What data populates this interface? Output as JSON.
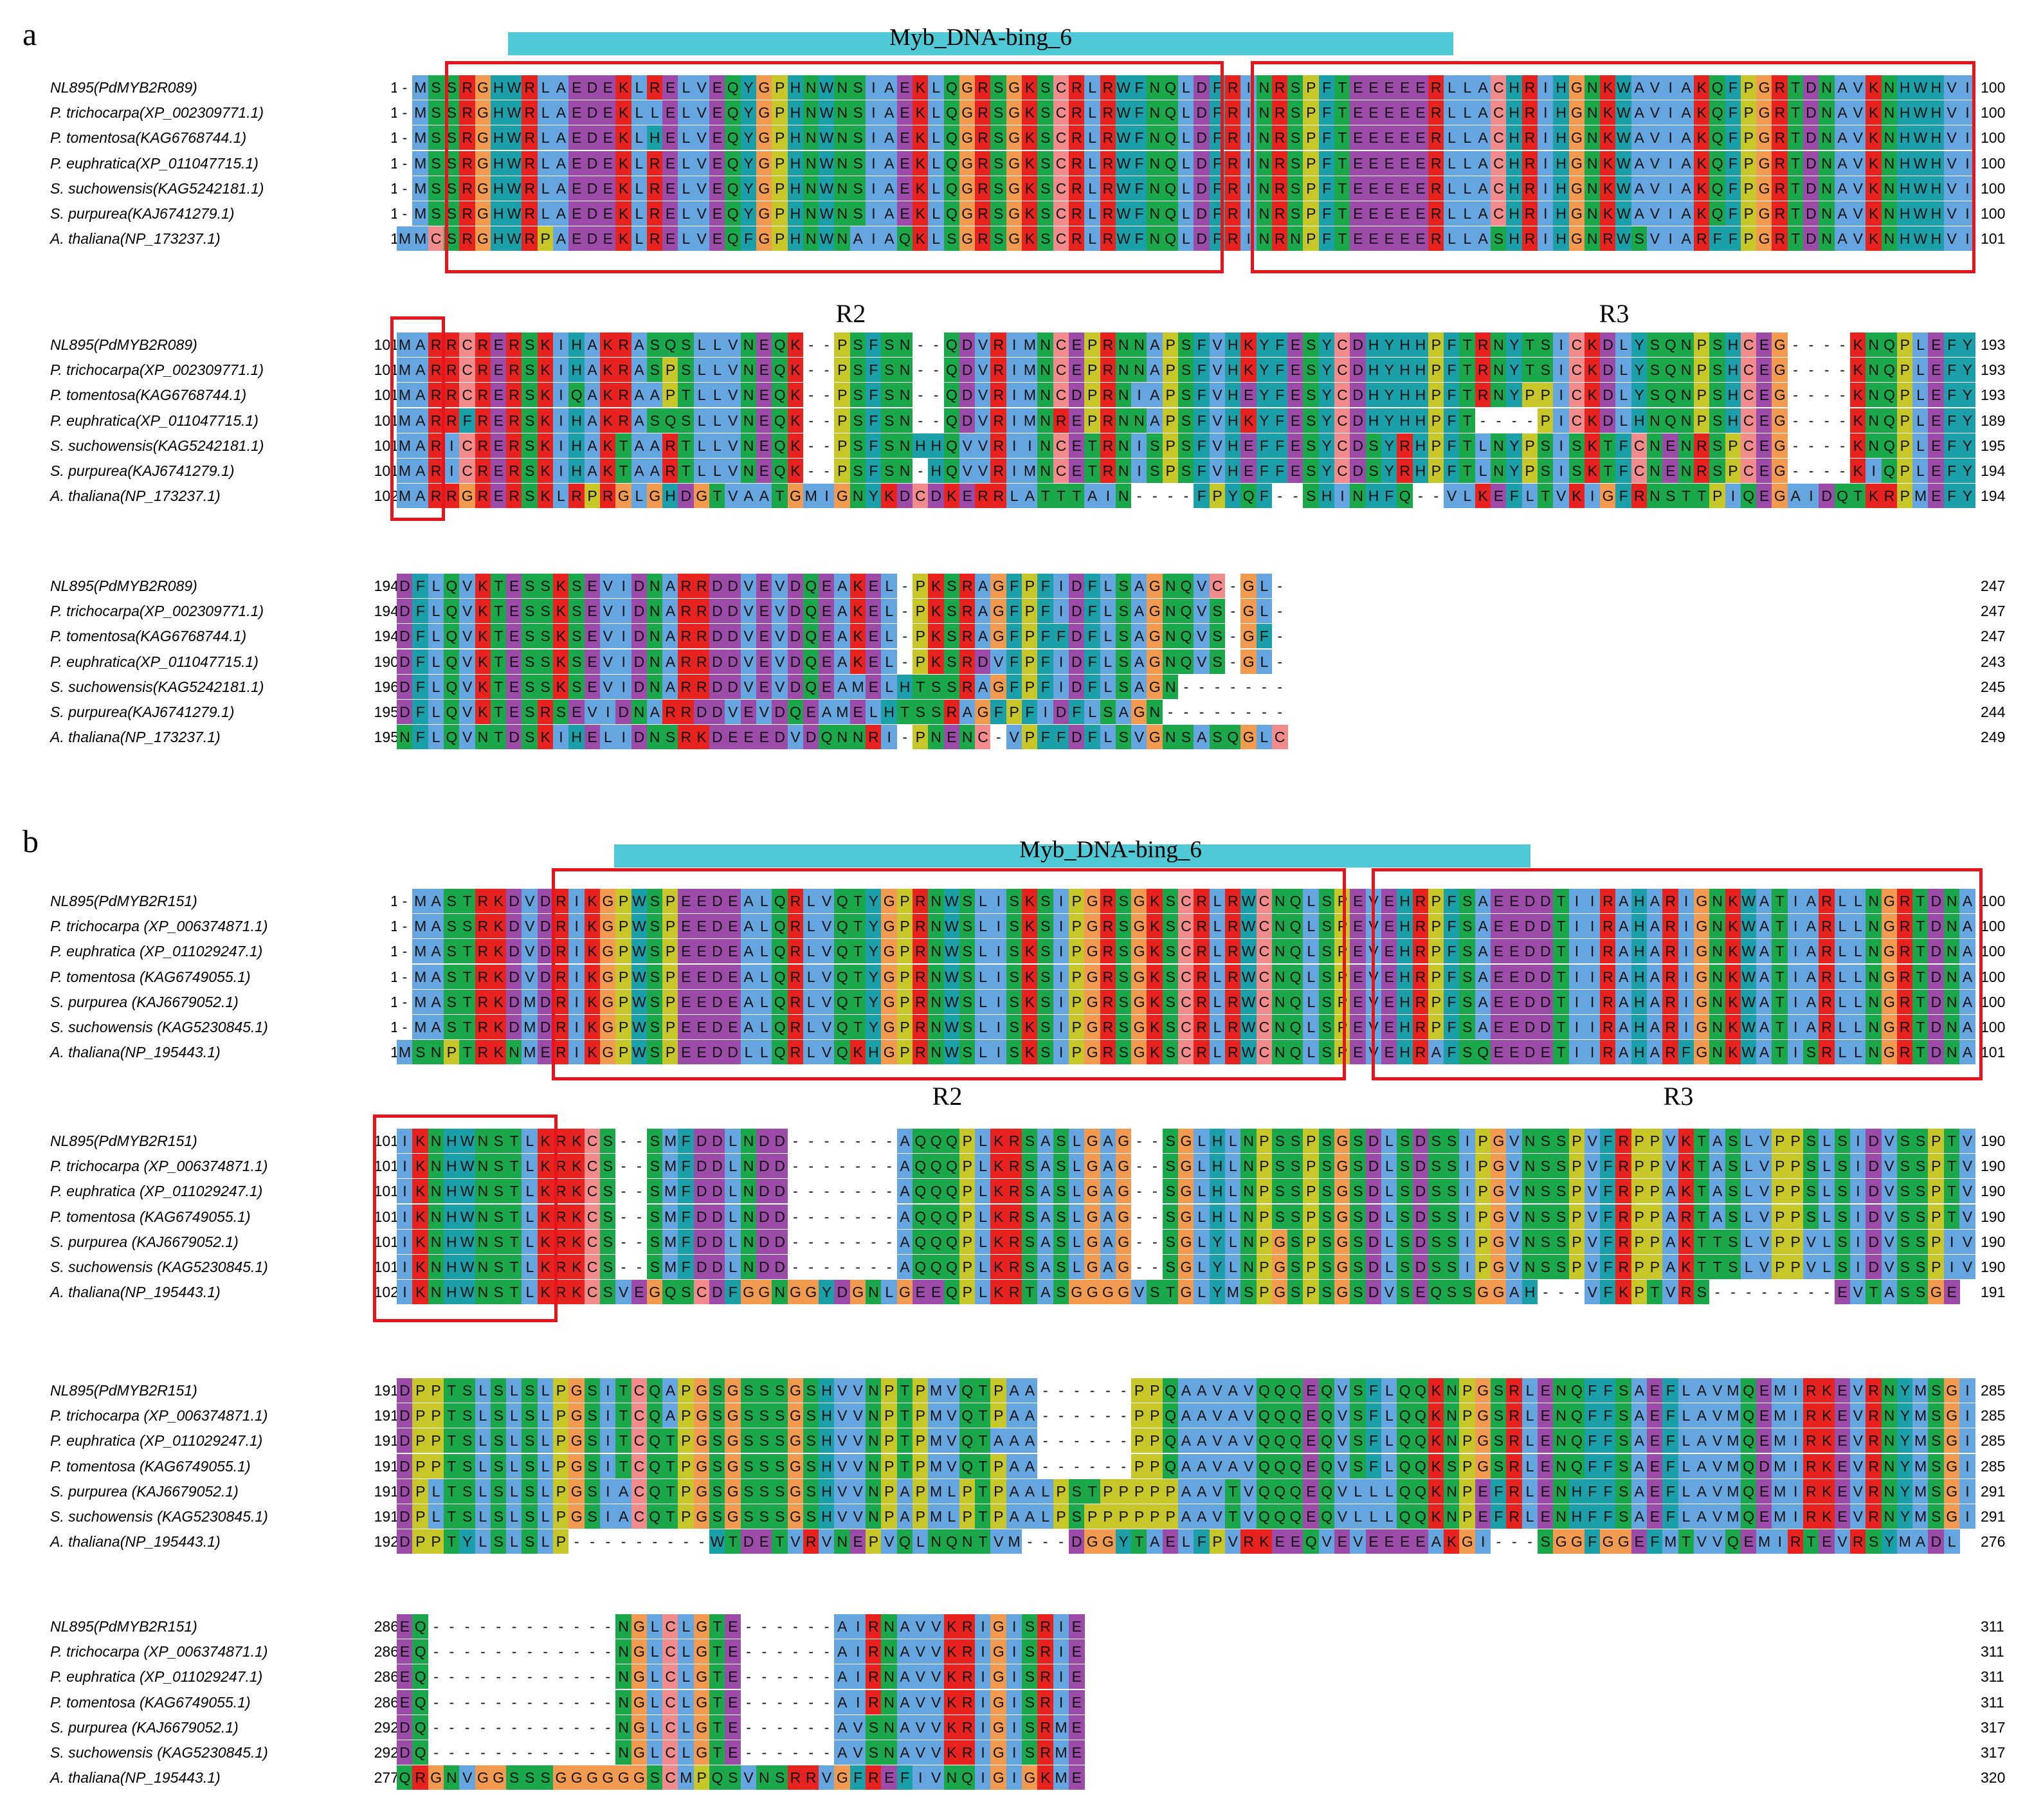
{
  "colors": {
    "domain_bar": "#4fc9d6",
    "region_box": "#e8141b",
    "residue_palette": {
      "hydrophobic": "#66a6e0",
      "positive": "#e8221f",
      "negative": "#9c4ca8",
      "polar": "#1aa84a",
      "cysteine": "#f28b8b",
      "glycine": "#f29b50",
      "proline": "#c7c729",
      "aromatic": "#1b9fa8",
      "gap": "#ffffff"
    }
  },
  "panels": [
    {
      "letter": "a",
      "domain": {
        "label": "Myb_DNA-bing_6"
      },
      "region_labels": [
        "R2",
        "R3"
      ],
      "blocks": [
        {
          "rows": [
            {
              "name": "NL895(PdMYB2R089)",
              "start": "1",
              "end": "100",
              "seq": "-MSSRGHWRLAEDEKLRELVEQYGPHNWNSIAEKLQGRSGKSCRLRWFNQLDFRINRSPFTEEEEERLLACHRIHGNKWAVIAKQFPGRTDNAVKNHWHVI"
            },
            {
              "name": "P. trichocarpa(XP_002309771.1)",
              "start": "1",
              "end": "100",
              "seq": "-MSSRGHWRLAEDEKLLELVEQYGPHNWNSIAEKLQGRSGKSCRLRWFNQLDFRINRSPFTEEEEERLLACHRIHGNKWAVIAKQFPGRTDNAVKNHWHVI"
            },
            {
              "name": "P. tomentosa(KAG6768744.1)",
              "start": "1",
              "end": "100",
              "seq": "-MSSRGHWRLAEDEKLHELVEQYGPHNWNSIAEKLQGRSGKSCRLRWFNQLDFRINRSPFTEEEEERLLACHRIHGNKWAVIAKQFPGRTDNAVKNHWHVI"
            },
            {
              "name": "P. euphratica(XP_011047715.1)",
              "start": "1",
              "end": "100",
              "seq": "-MSSRGHWRLAEDEKLRELVEQYGPHNWNSIAEKLQGRSGKSCRLRWFNQLDFRINRSPFTEEEEERLLACHRIHGNKWAVIAKQFPGRTDNAVKNHWHVI"
            },
            {
              "name": "S. suchowensis(KAG5242181.1)",
              "start": "1",
              "end": "100",
              "seq": "-MSSRGHWRLAEDEKLRELVEQYGPHNWNSIAEKLQGRSGKSCRLRWFNQLDFRINRSPFTEEEEERLLACHRIHGNKWAVIAKQFPGRTDNAVKNHWHVI"
            },
            {
              "name": "S. purpurea(KAJ6741279.1)",
              "start": "1",
              "end": "100",
              "seq": "-MSSRGHWRLAEDEKLRELVEQYGPHNWNSIAEKLQGRSGKSCRLRWFNQLDFRINRSPFTEEEEERLLACHRIHGNKWAVIAKQFPGRTDNAVKNHWHVI"
            },
            {
              "name": "A. thaliana(NP_173237.1)",
              "start": "1",
              "end": "101",
              "seq": "MMCSRGHWRPAEDEKLRELVEQFGPHNWNAIAQKLSGRSGKSCRLRWFNQLDFRINRNPFTEEEEERLLASHRIHGNRWSVIARFFPGRTDNAVKNHWHVI"
            }
          ]
        },
        {
          "rows": [
            {
              "name": "NL895(PdMYB2R089)",
              "start": "101",
              "end": "193",
              "seq": "MARRCRERSKIHAKRASQSLLVNEQK--PSFSN--QDVRIMNCEPRNNAPSFVHKYFESYCDHYHHPFTRNYTSICKDLYSQNPSHCEG----KNQPLEFY"
            },
            {
              "name": "P. trichocarpa(XP_002309771.1)",
              "start": "101",
              "end": "193",
              "seq": "MARRCRERSKIHAKRASPSLLVNEQK--PSFSN--QDVRIMNCEPRNNAPSFVHKYFESYCDHYHHPFTRNYTSICKDLYSQNPSHCEG----KNQPLEFY"
            },
            {
              "name": "P. tomentosa(KAG6768744.1)",
              "start": "101",
              "end": "193",
              "seq": "MARRCRERSKIQAKRAAPTLLVNEQK--PSFSN--QDVRIMNCDPRNIAPSFVHEYFESYCDHYHHPFTRNYPPICKDLYSQNPSHCEG----KNQPLEFY"
            },
            {
              "name": "P. euphratica(XP_011047715.1)",
              "start": "101",
              "end": "189",
              "seq": "MARRFRERSKIHAKRASQSLLVNEQK--PSFSN--QDVRIMNREPRNNAPSFVHKYFESYCDHYHHPFT----PICKDLHNQNPSHCEG----KNQPLEFY"
            },
            {
              "name": "S. suchowensis(KAG5242181.1)",
              "start": "101",
              "end": "195",
              "seq": "MARICRERSKIHAKTAARTLLVNEQK--PSFSNHHQVVRIINCETRNISPSFVHEFFESYCDSYRHPFTLNYPSISKTFCNENRSPCEG----KNQPLEFY"
            },
            {
              "name": "S. purpurea(KAJ6741279.1)",
              "start": "101",
              "end": "194",
              "seq": "MARICRERSKIHAKTAARTLLVNEQK--PSFSN-HQVVRIMNCETRNISPSFVHEFFESYCDSYRHPFTLNYPSISKTFCNENRSPCEG----KIQPLEFY"
            },
            {
              "name": "A. thaliana(NP_173237.1)",
              "start": "102",
              "end": "194",
              "seq": "MARRGRERSKLRPRGLGHDGTVAATGMIGNYKDCDKERRLATTTAIN----FPYQF--SHINHFQ--VLKEFLTVKIGFRNSTTPIQEGAIDQTKRPMEFY"
            }
          ]
        },
        {
          "rows": [
            {
              "name": "NL895(PdMYB2R089)",
              "start": "194",
              "end": "247",
              "seq": "DFLQVKTESSKSEVIDNARRDDVEVDQEAKEL-PKSRAGFPFIDFLSAGNQVC-GL-"
            },
            {
              "name": "P. trichocarpa(XP_002309771.1)",
              "start": "194",
              "end": "247",
              "seq": "DFLQVKTESSKSEVIDNARRDDVEVDQEAKEL-PKSRAGFPFIDFLSAGNQVS-GL-"
            },
            {
              "name": "P. tomentosa(KAG6768744.1)",
              "start": "194",
              "end": "247",
              "seq": "DFLQVKTESSKSEVIDNARRDDVEVDQEAKEL-PKSRAGFPFFDFLSAGNQVS-GF-"
            },
            {
              "name": "P. euphratica(XP_011047715.1)",
              "start": "190",
              "end": "243",
              "seq": "DFLQVKTESSKSEVIDNARRDDVEVDQEAKEL-PKSRDVFPFIDFLSAGNQVS-GL-"
            },
            {
              "name": "S. suchowensis(KAG5242181.1)",
              "start": "196",
              "end": "245",
              "seq": "DFLQVKTESSKSEVIDNARRDDVEVDQEAMELHTSSRAGFPFIDFLSAGN-------"
            },
            {
              "name": "S. purpurea(KAJ6741279.1)",
              "start": "195",
              "end": "244",
              "seq": "DFLQVKTESRSEVIDNARRDDVEVDQEAMELHTSSRAGFPFIDFLSAGN--------"
            },
            {
              "name": "A. thaliana(NP_173237.1)",
              "start": "195",
              "end": "249",
              "seq": "NFLQVNTDSKIHELIDNSRKDEEEDVDQNNRI-PNENC-VPFFDFLSVGNSASQGLC"
            }
          ]
        }
      ]
    },
    {
      "letter": "b",
      "domain": {
        "label": "Myb_DNA-bing_6"
      },
      "region_labels": [
        "R2",
        "R3"
      ],
      "blocks": [
        {
          "rows": [
            {
              "name": "NL895(PdMYB2R151)",
              "start": "1",
              "end": "100",
              "seq": "-MASTRKDVDRIKGPWSPEEDEALQRLVQTYGPRNWSLISKSIPGRSGKSCRLRWCNQLSPEVEHRPFSAEEDDTIIRAHARIGNKWATIARLLNGRTDNA"
            },
            {
              "name": "P. trichocarpa (XP_006374871.1)",
              "start": "1",
              "end": "100",
              "seq": "-MASSRKDVDRIKGPWSPEEDEALQRLVQTYGPRNWSLISKSIPGRSGKSCRLRWCNQLSPEVEHRPFSAEEDDTIIRAHARIGNKWATIARLLNGRTDNA"
            },
            {
              "name": "P. euphratica (XP_011029247.1)",
              "start": "1",
              "end": "100",
              "seq": "-MASTRKDVDRIKGPWSPEEDEALQRLVQTYGPRNWSLISKSIPGRSGKSCRLRWCNQLSPEVEHRPFSAEEDDTIIRAHARIGNKWATIARLLNGRTDNA"
            },
            {
              "name": "P. tomentosa (KAG6749055.1)",
              "start": "1",
              "end": "100",
              "seq": "-MASTRKDVDRIKGPWSPEEDEALQRLVQTYGPRNWSLISKSIPGRSGKSCRLRWCNQLSPEVEHRPFSAEEDDTIIRAHARIGNKWATIARLLNGRTDNA"
            },
            {
              "name": "S. purpurea (KAJ6679052.1)",
              "start": "1",
              "end": "100",
              "seq": "-MASTRKDMDRIKGPWSPEEDEALQRLVQTYGPRNWSLISKSIPGRSGKSCRLRWCNQLSPEVEHRPFSAEEDDTIIRAHARIGNKWATIARLLNGRTDNA"
            },
            {
              "name": "S. suchowensis (KAG5230845.1)",
              "start": "1",
              "end": "100",
              "seq": "-MASTRKDMDRIKGPWSPEEDEALQRLVQTYGPRNWSLISKSIPGRSGKSCRLRWCNQLSPEVEHRPFSAEEDDTIIRAHARIGNKWATIARLLNGRTDNA"
            },
            {
              "name": "A. thaliana(NP_195443.1)",
              "start": "1",
              "end": "101",
              "seq": "MSNPTRKNMERIKGPWSPEEDDLLQRLVQKHGPRNWSLISKSIPGRSGKSCRLRWCNQLSPEVEHRAFSQEEDETIIRAHARFGNKWATISRLLNGRTDNA"
            }
          ]
        },
        {
          "rows": [
            {
              "name": "NL895(PdMYB2R151)",
              "start": "101",
              "end": "190",
              "seq": "IKNHWNSTLKRKCS--SMFDDLNDD-------AQQQPLKRSASLGAG--SGLHLNPSSPSGSDLSDSSIPGVNSSPVFRPPVKTASLVPPSLSIDVSSPTV"
            },
            {
              "name": "P. trichocarpa (XP_006374871.1)",
              "start": "101",
              "end": "190",
              "seq": "IKNHWNSTLKRKCS--SMFDDLNDD-------AQQQPLKRSASLGAG--SGLHLNPSSPSGSDLSDSSIPGVNSSPVFRPPVKTASLVPPSLSIDVSSPTV"
            },
            {
              "name": "P. euphratica (XP_011029247.1)",
              "start": "101",
              "end": "190",
              "seq": "IKNHWNSTLKRKCS--SMFDDLNDD-------AQQQPLKRSASLGAG--SGLHLNPSSPSGSDLSDSSIPGVNSSPVFRPPAKTASLVPPSLSIDVSSPTV"
            },
            {
              "name": "P. tomentosa (KAG6749055.1)",
              "start": "101",
              "end": "190",
              "seq": "IKNHWNSTLKRKCS--SMFDDLNDD-------AQQQPLKRSASLGAG--SGLHLNPSSPSGSDLSDSSIPGVNSSPVFRPPARTASLVPPSLSIDVSSPTV"
            },
            {
              "name": "S. purpurea (KAJ6679052.1)",
              "start": "101",
              "end": "190",
              "seq": "IKNHWNSTLKRKCS--SMFDDLNDD-------AQQQPLKRSASLGAG--SGLYLNPGSPSGSDLSDSSIPGVNSSPVFRPPAKTTSLVPPVLSIDVSSPIV"
            },
            {
              "name": "S. suchowensis (KAG5230845.1)",
              "start": "101",
              "end": "190",
              "seq": "IKNHWNSTLKRKCS--SMFDDLNDD-------AQQQPLKRSASLGAG--SGLYLNPGSPSGSDLSDSSIPGVNSSPVFRPPAKTTSLVPPVLSIDVSSPIV"
            },
            {
              "name": "A. thaliana(NP_195443.1)",
              "start": "102",
              "end": "191",
              "seq": "IKNHWNSTLKRKCSVEGQSCDFGGNGGYDGNLGEEQPLKRTASGGGGVSTGLYMSPGSPSGSDVSEQSSGGAH---VFKPTVRS--------EVTASSGE"
            }
          ]
        },
        {
          "rows": [
            {
              "name": "NL895(PdMYB2R151)",
              "start": "191",
              "end": "285",
              "seq": "DPPTSLSLSLPGSITCQAPGSGSSSGSHVVNPTPMVQTPAA------PPQAAVAVQQQEQVSFLQQKNPGSRLENQFFSAEFLAVMQEMIRKEVRNYMSGI"
            },
            {
              "name": "P. trichocarpa (XP_006374871.1)",
              "start": "191",
              "end": "285",
              "seq": "DPPTSLSLSLPGSITCQAPGSGSSSGSHVVNPTPMVQTPAA------PPQAAVAVQQQEQVSFLQQKNPGSRLENQFFSAEFLAVMQEMIRKEVRNYMSGI"
            },
            {
              "name": "P. euphratica (XP_011029247.1)",
              "start": "191",
              "end": "285",
              "seq": "DPPTSLSLSLPGSITCQTPGSGSSSGSHVVNPTPMVQTAAA------PPQAAVAVQQQEQVSFLQQKNPGSRLENQFFSAEFLAVMQEMIRKEVRNYMSGI"
            },
            {
              "name": "P. tomentosa (KAG6749055.1)",
              "start": "191",
              "end": "285",
              "seq": "DPPTSLSLSLPGSITCQTPGSGSSSGSHVVNPTPMVQTPAA------PPQAAVAVQQQEQVSFLQQKSPGSRLENQFFSAEFLAVMQDMIRKEVRNYMSGI"
            },
            {
              "name": "S. purpurea (KAJ6679052.1)",
              "start": "191",
              "end": "291",
              "seq": "DPLTSLSLSLPGSIACQTPGSGSSSGSHVVNPAPMLPTPAALPSTPPPPPAAVTVQQQEQVLLLQQKNPEFRLENHFFSAEFLAVMQEMIRKEVRNYMSGI"
            },
            {
              "name": "S. suchowensis (KAG5230845.1)",
              "start": "191",
              "end": "291",
              "seq": "DPLTSLSLSLPGSIACQTPGSGSSSGSHVVNPAPMLPTPAALPSPPPPPPAAVTVQQQEQVLLLQQKNPEFRLENHFFSAEFLAVMQEMIRKEVRNYMSGI"
            },
            {
              "name": "A. thaliana(NP_195443.1)",
              "start": "192",
              "end": "276",
              "seq": "DPPTYLSLSLP---------WTDETVRVNEPVQLNQNTVM---DGGYTAELFPVRKEEQVEVEEEEAKGI---SGGFGGEFMTVVQEMIRTEVRSYMADL"
            }
          ]
        },
        {
          "rows": [
            {
              "name": "NL895(PdMYB2R151)",
              "start": "286",
              "end": "311",
              "seq": "EQ------------NGLCLGTE------AIRNAVVKRIGISRIE"
            },
            {
              "name": "P. trichocarpa (XP_006374871.1)",
              "start": "286",
              "end": "311",
              "seq": "EQ------------NGLCLGTE------AIRNAVVKRIGISRIE"
            },
            {
              "name": "P. euphratica (XP_011029247.1)",
              "start": "286",
              "end": "311",
              "seq": "EQ------------NGLCLGTE------AIRNAVVKRIGISRIE"
            },
            {
              "name": "P. tomentosa (KAG6749055.1)",
              "start": "286",
              "end": "311",
              "seq": "EQ------------NGLCLGTE------AIRNAVVKRIGISRIE"
            },
            {
              "name": "S. purpurea (KAJ6679052.1)",
              "start": "292",
              "end": "317",
              "seq": "DQ------------NGLCLGTE------AVSNAVVKRIGISRME"
            },
            {
              "name": "S. suchowensis (KAG5230845.1)",
              "start": "292",
              "end": "317",
              "seq": "DQ------------NGLCLGTE------AVSNAVVKRIGISRME"
            },
            {
              "name": "A. thaliana(NP_195443.1)",
              "start": "277",
              "end": "320",
              "seq": "QRGNVGGSSSGGGGGGSCMPQSVNSRRVGFREFIVNQIGIGKME"
            }
          ]
        }
      ]
    }
  ]
}
